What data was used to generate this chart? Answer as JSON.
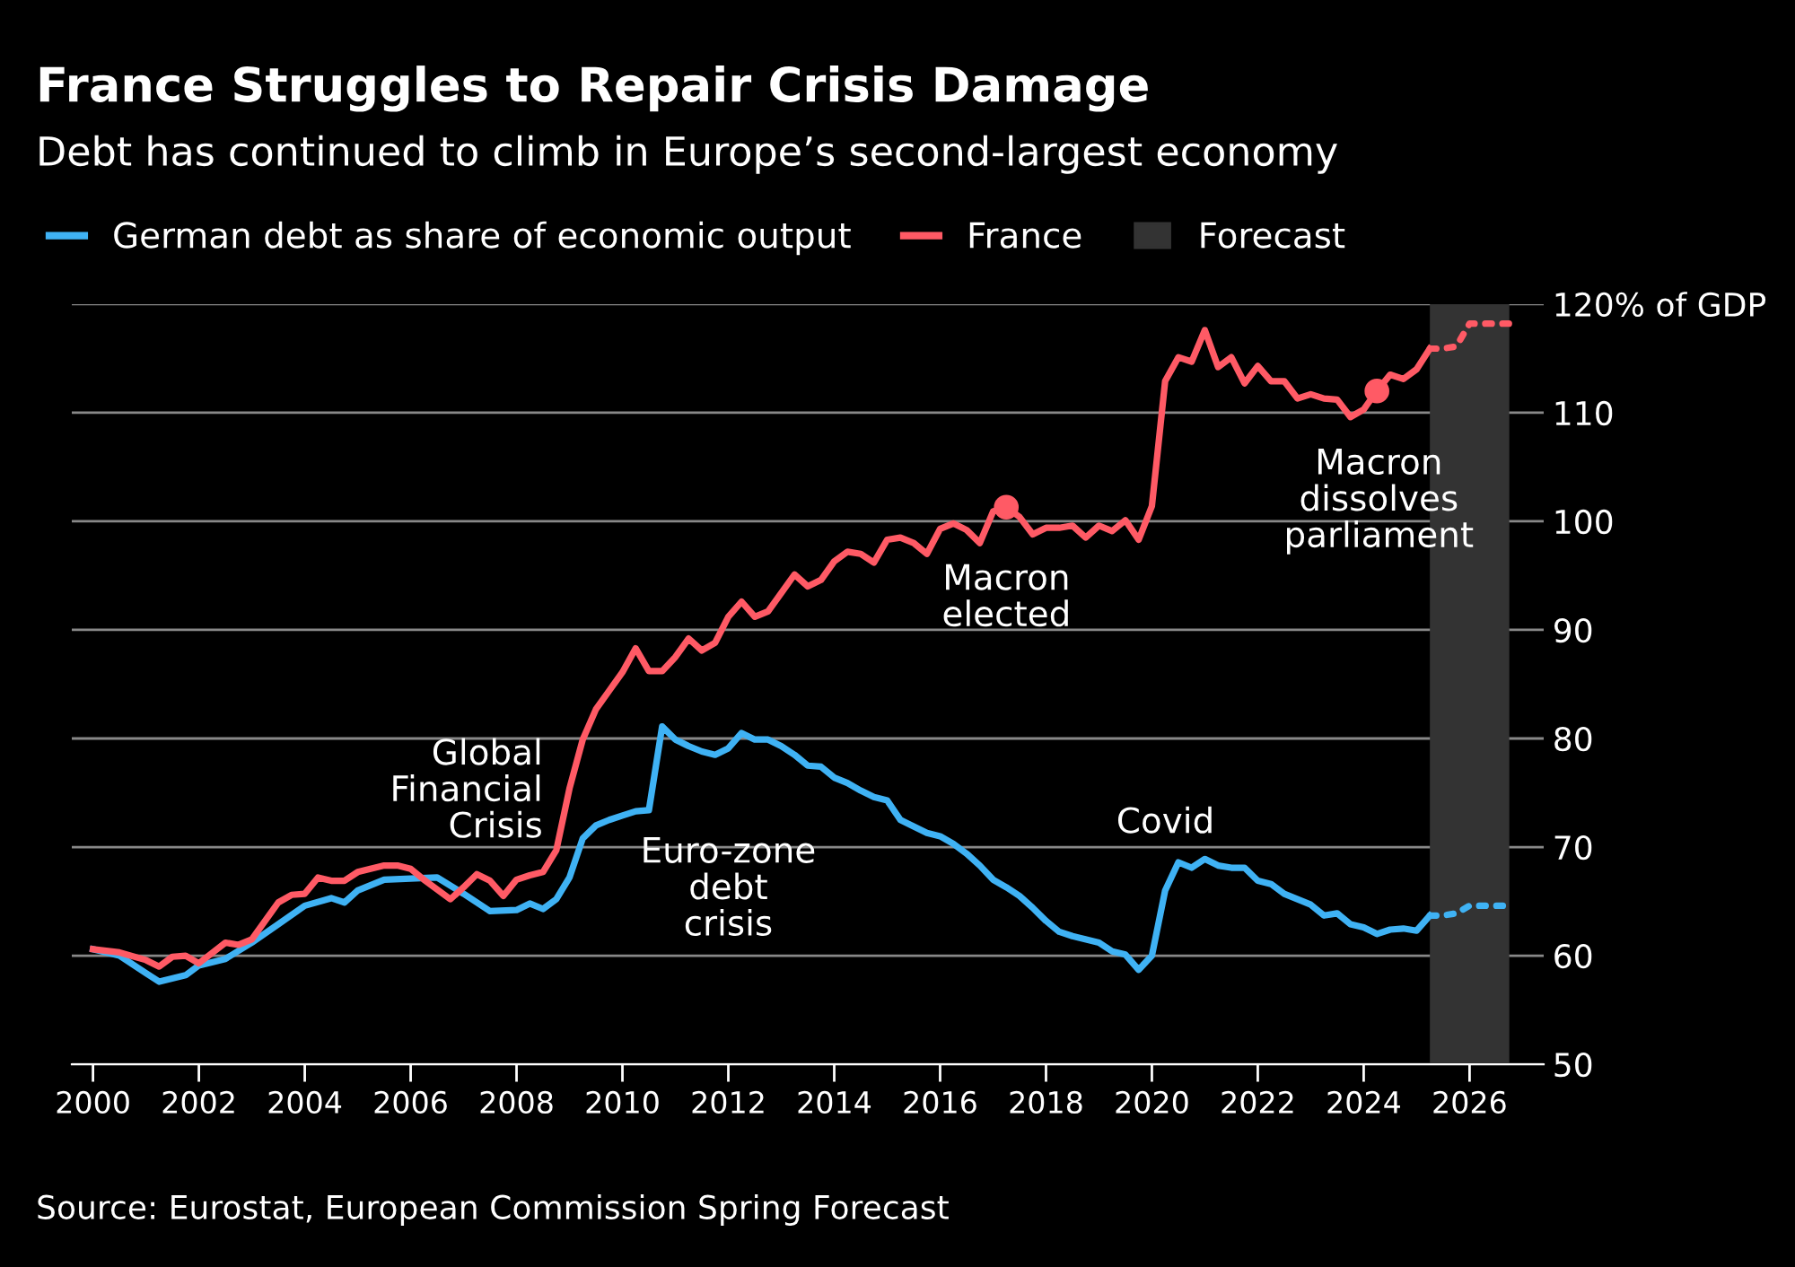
{
  "chart_data": {
    "type": "line",
    "title": "France Struggles to Repair Crisis Damage",
    "subtitle": "Debt has continued to climb in Europe’s second-largest economy",
    "series": [
      {
        "name": "German debt as share of economic output",
        "color": "#3fb2f4",
        "x": [
          2000,
          2000.5,
          2001,
          2001.25,
          2001.75,
          2002,
          2002.5,
          2003,
          2003.5,
          2004,
          2004.5,
          2004.75,
          2005,
          2005.5,
          2006.5,
          2007,
          2007.5,
          2008,
          2008.25,
          2008.5,
          2008.75,
          2009,
          2009.25,
          2009.5,
          2009.75,
          2010,
          2010.25,
          2010.5,
          2010.75,
          2011,
          2011.25,
          2011.5,
          2011.75,
          2012,
          2012.25,
          2012.5,
          2012.75,
          2013,
          2013.25,
          2013.5,
          2013.75,
          2014,
          2014.25,
          2014.5,
          2014.75,
          2015,
          2015.25,
          2015.5,
          2015.75,
          2016,
          2016.25,
          2016.5,
          2016.75,
          2017,
          2017.25,
          2017.5,
          2017.75,
          2018,
          2018.25,
          2018.5,
          2019,
          2019.25,
          2019.5,
          2019.75,
          2020,
          2020.25,
          2020.5,
          2020.75,
          2021,
          2021.25,
          2021.5,
          2021.75,
          2022,
          2022.25,
          2022.5,
          2022.75,
          2023,
          2023.25,
          2023.5,
          2023.75,
          2024,
          2024.25,
          2024.5,
          2024.75,
          2025,
          2025.25
        ],
        "values": [
          60.6,
          60.0,
          58.4,
          57.6,
          58.2,
          59.1,
          59.7,
          61.2,
          62.9,
          64.6,
          65.3,
          64.9,
          66.0,
          67.0,
          67.2,
          65.7,
          64.1,
          64.2,
          64.8,
          64.3,
          65.2,
          67.2,
          70.8,
          72.0,
          72.5,
          72.9,
          73.3,
          73.4,
          81.1,
          79.9,
          79.3,
          78.8,
          78.5,
          79.1,
          80.5,
          79.9,
          79.9,
          79.3,
          78.5,
          77.5,
          77.4,
          76.4,
          75.9,
          75.2,
          74.6,
          74.3,
          72.5,
          71.9,
          71.3,
          71.0,
          70.3,
          69.4,
          68.3,
          67.0,
          66.3,
          65.5,
          64.4,
          63.2,
          62.2,
          61.8,
          61.2,
          60.4,
          60.1,
          58.7,
          60.0,
          66.0,
          68.6,
          68.1,
          68.9,
          68.3,
          68.1,
          68.1,
          66.9,
          66.6,
          65.7,
          65.2,
          64.7,
          63.7,
          63.9,
          62.9,
          62.6,
          62.0,
          62.4,
          62.5,
          62.3,
          63.7
        ]
      },
      {
        "name": "France",
        "color": "#ff5a65",
        "x": [
          2000,
          2000.5,
          2001,
          2001.25,
          2001.5,
          2001.75,
          2002,
          2002.5,
          2002.75,
          2003,
          2003.5,
          2003.75,
          2004,
          2004.25,
          2004.5,
          2004.75,
          2005,
          2005.5,
          2005.75,
          2006,
          2006.25,
          2006.75,
          2007,
          2007.25,
          2007.5,
          2007.75,
          2008,
          2008.25,
          2008.5,
          2008.75,
          2009,
          2009.25,
          2009.5,
          2009.75,
          2010,
          2010.25,
          2010.5,
          2010.75,
          2011,
          2011.25,
          2011.5,
          2011.75,
          2012,
          2012.25,
          2012.5,
          2012.75,
          2013,
          2013.25,
          2013.5,
          2013.75,
          2014,
          2014.25,
          2014.5,
          2014.75,
          2015,
          2015.25,
          2015.5,
          2015.75,
          2016,
          2016.25,
          2016.5,
          2016.75,
          2017,
          2017.25,
          2017.5,
          2017.75,
          2018,
          2018.25,
          2018.5,
          2018.75,
          2019,
          2019.25,
          2019.5,
          2019.75,
          2020,
          2020.25,
          2020.5,
          2020.75,
          2021,
          2021.25,
          2021.5,
          2021.75,
          2022,
          2022.25,
          2022.5,
          2022.75,
          2023,
          2023.25,
          2023.5,
          2023.75,
          2024,
          2024.25,
          2024.5,
          2024.75,
          2025,
          2025.25
        ],
        "values": [
          60.6,
          60.3,
          59.6,
          59.0,
          59.9,
          60.0,
          59.3,
          61.2,
          61.0,
          61.5,
          64.9,
          65.6,
          65.7,
          67.2,
          66.9,
          66.9,
          67.7,
          68.3,
          68.3,
          68.0,
          67.0,
          65.2,
          66.3,
          67.5,
          66.9,
          65.5,
          67.0,
          67.4,
          67.7,
          69.7,
          75.4,
          79.9,
          82.7,
          84.4,
          86.1,
          88.3,
          86.2,
          86.2,
          87.5,
          89.2,
          88.1,
          88.8,
          91.2,
          92.6,
          91.2,
          91.7,
          93.4,
          95.1,
          94.0,
          94.6,
          96.3,
          97.2,
          97.0,
          96.2,
          98.3,
          98.5,
          98.0,
          97.0,
          99.3,
          99.8,
          99.2,
          98.0,
          100.9,
          101.3,
          100.4,
          98.8,
          99.4,
          99.4,
          99.6,
          98.5,
          99.6,
          99.1,
          100.1,
          98.3,
          101.4,
          112.9,
          115.1,
          114.7,
          117.6,
          114.2,
          115.1,
          112.7,
          114.3,
          112.9,
          112.9,
          111.3,
          111.7,
          111.3,
          111.2,
          109.6,
          110.3,
          112.0,
          113.5,
          113.1,
          114.0,
          115.9
        ]
      },
      {
        "color": "#3fb2f4",
        "line_style": "dotted",
        "x": [
          2025.25,
          2025.5,
          2025.75,
          2026,
          2026.25,
          2026.5,
          2026.75
        ],
        "values": [
          63.7,
          63.7,
          63.9,
          64.6,
          64.6,
          64.6,
          64.6
        ]
      },
      {
        "color": "#ff5a65",
        "line_style": "dotted",
        "x": [
          2025.25,
          2025.5,
          2025.75,
          2026,
          2026.25,
          2026.5,
          2026.75
        ],
        "values": [
          115.9,
          115.9,
          116.1,
          118.2,
          118.2,
          118.2,
          118.2
        ]
      },
      {
        "type": "scatter",
        "marker": "circle",
        "color": "#ff5a65",
        "x": [
          2017.25,
          2024.25
        ],
        "values": [
          101.3,
          112.0
        ]
      }
    ],
    "bands": [
      {
        "axis": "x",
        "from": 2025.25,
        "to": 2026.75,
        "label": "Forecast",
        "color": "#333333"
      }
    ],
    "annotations": [
      "Global\nFinancial\nCrisis",
      "Euro-zone\ndebt\ncrisis",
      "Macron\nelected",
      "Covid",
      "Macron\ndissolves\nparliament",
      "Source: Eurostat, European Commission Spring Forecast"
    ],
    "xlim": [
      1999.6,
      2027.4
    ],
    "ylim": [
      50,
      120
    ],
    "xticks": [
      2000,
      2002,
      2004,
      2006,
      2008,
      2010,
      2012,
      2014,
      2016,
      2018,
      2020,
      2022,
      2024,
      2026
    ],
    "yticks": [
      50,
      60,
      70,
      80,
      90,
      100,
      110,
      {
        "value": 120,
        "label": "120% of GDP"
      }
    ],
    "grid": "y",
    "legend": "top left",
    "line_style": "solid",
    "marker": "none"
  }
}
